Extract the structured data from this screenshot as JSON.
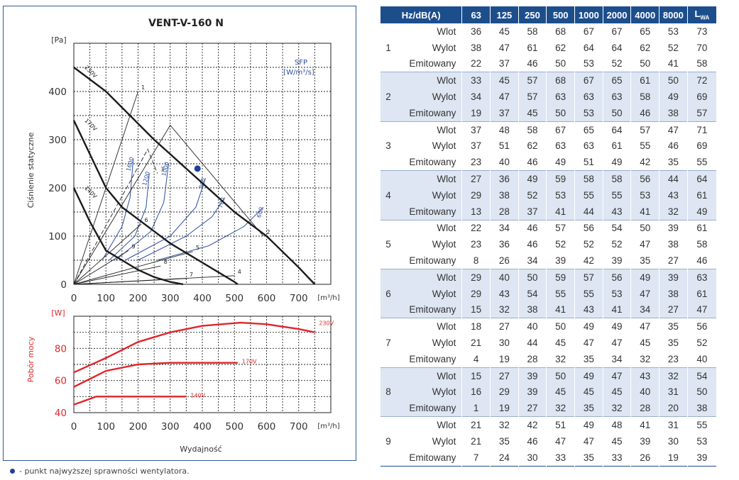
{
  "chart_data": [
    {
      "type": "line",
      "title": "VENT-V-160 N",
      "ylabel": "Ciśnienie statyczne",
      "yunit": "[Pa]",
      "xunit": "[m³/h]",
      "xlim": [
        0,
        800
      ],
      "ylim": [
        0,
        500
      ],
      "x_ticks": [
        0,
        100,
        200,
        300,
        400,
        500,
        600,
        700
      ],
      "y_ticks": [
        0,
        100,
        200,
        300,
        400
      ],
      "grid": true,
      "fan_curves": [
        {
          "name": "230V",
          "points": [
            [
              0,
              450
            ],
            [
              100,
              400
            ],
            [
              250,
              300
            ],
            [
              300,
              270
            ],
            [
              400,
              210
            ],
            [
              500,
              150
            ],
            [
              600,
              100
            ],
            [
              700,
              35
            ],
            [
              750,
              0
            ]
          ]
        },
        {
          "name": "170V",
          "points": [
            [
              0,
              340
            ],
            [
              50,
              270
            ],
            [
              100,
              200
            ],
            [
              150,
              160
            ],
            [
              200,
              135
            ],
            [
              250,
              110
            ],
            [
              300,
              85
            ],
            [
              400,
              45
            ],
            [
              500,
              5
            ],
            [
              510,
              0
            ]
          ]
        },
        {
          "name": "140V",
          "points": [
            [
              0,
              200
            ],
            [
              50,
              130
            ],
            [
              100,
              70
            ],
            [
              150,
              50
            ],
            [
              200,
              30
            ],
            [
              250,
              15
            ],
            [
              300,
              5
            ],
            [
              340,
              0
            ]
          ]
        }
      ],
      "system_curves": [
        {
          "label": "1",
          "points": [
            [
              0,
              0
            ],
            [
              200,
              400
            ]
          ]
        },
        {
          "label": "2",
          "points": [
            [
              0,
              0
            ],
            [
              300,
              330
            ],
            [
              590,
              100
            ]
          ]
        },
        {
          "label": "3",
          "points": [
            [
              0,
              0
            ],
            [
              230,
              280
            ],
            [
              260,
              230
            ]
          ]
        },
        {
          "label": "4",
          "points": [
            [
              0,
              0
            ],
            [
              500,
              18
            ]
          ]
        },
        {
          "label": "5",
          "points": [
            [
              0,
              0
            ],
            [
              370,
              68
            ]
          ]
        },
        {
          "label": "6",
          "points": [
            [
              0,
              0
            ],
            [
              210,
              125
            ]
          ]
        },
        {
          "label": "7",
          "points": [
            [
              0,
              0
            ],
            [
              350,
              12
            ]
          ]
        },
        {
          "label": "8",
          "points": [
            [
              0,
              0
            ],
            [
              270,
              38
            ]
          ]
        },
        {
          "label": "9",
          "points": [
            [
              0,
              0
            ],
            [
              170,
              70
            ]
          ]
        }
      ],
      "sfp_label": "SFP",
      "sfp_unit": "[W/m³/s]",
      "sfp_curves": [
        {
          "name": "1600",
          "points": [
            [
              90,
              52
            ],
            [
              150,
              120
            ],
            [
              175,
              180
            ],
            [
              185,
              260
            ]
          ]
        },
        {
          "name": "1200",
          "points": [
            [
              110,
              50
            ],
            [
              190,
              100
            ],
            [
              225,
              160
            ],
            [
              235,
              230
            ]
          ]
        },
        {
          "name": "1000",
          "points": [
            [
              130,
              50
            ],
            [
              240,
              110
            ],
            [
              280,
              170
            ],
            [
              295,
              250
            ]
          ]
        },
        {
          "name": "800",
          "points": [
            [
              160,
              50
            ],
            [
              300,
              100
            ],
            [
              380,
              160
            ],
            [
              410,
              220
            ]
          ]
        },
        {
          "name": "700",
          "points": [
            [
              200,
              50
            ],
            [
              350,
              100
            ],
            [
              430,
              140
            ],
            [
              470,
              180
            ]
          ]
        },
        {
          "name": "600",
          "points": [
            [
              260,
              50
            ],
            [
              420,
              80
            ],
            [
              530,
              120
            ],
            [
              590,
              160
            ]
          ]
        }
      ],
      "best_efficiency_point": {
        "x": 385,
        "y": 240
      },
      "point_labels": [
        "1",
        "2",
        "3",
        "4",
        "5",
        "6",
        "7",
        "8",
        "9"
      ]
    },
    {
      "type": "line",
      "ylabel": "Pobór mocy",
      "yunit": "[W]",
      "xlabel": "Wydajność",
      "xunit": "[m³/h]",
      "xlim": [
        0,
        800
      ],
      "ylim": [
        40,
        100
      ],
      "x_ticks": [
        0,
        100,
        200,
        300,
        400,
        500,
        600,
        700
      ],
      "y_ticks": [
        40,
        60,
        80
      ],
      "grid": true,
      "series": [
        {
          "name": "230V",
          "points": [
            [
              0,
              65
            ],
            [
              100,
              74
            ],
            [
              200,
              84
            ],
            [
              300,
              90
            ],
            [
              400,
              94
            ],
            [
              520,
              96
            ],
            [
              600,
              95
            ],
            [
              700,
              92
            ],
            [
              750,
              90
            ]
          ]
        },
        {
          "name": "170V",
          "points": [
            [
              0,
              56
            ],
            [
              100,
              66
            ],
            [
              200,
              70
            ],
            [
              300,
              71
            ],
            [
              400,
              71
            ],
            [
              500,
              71
            ],
            [
              510,
              71
            ]
          ]
        },
        {
          "name": "140V",
          "points": [
            [
              0,
              45
            ],
            [
              70,
              50
            ],
            [
              100,
              50
            ],
            [
              150,
              50
            ],
            [
              200,
              50
            ],
            [
              300,
              50
            ],
            [
              350,
              50
            ]
          ]
        }
      ]
    },
    {
      "type": "table",
      "headers": [
        "Hz/dB(A)",
        "63",
        "125",
        "250",
        "500",
        "1000",
        "2000",
        "4000",
        "8000",
        "L"
      ],
      "last_header_sub": "WA",
      "groups": [
        {
          "id": "1",
          "rows": [
            {
              "label": "Wlot",
              "values": [
                "36",
                "45",
                "58",
                "68",
                "67",
                "67",
                "65",
                "53",
                "73"
              ]
            },
            {
              "label": "Wylot",
              "values": [
                "38",
                "47",
                "61",
                "62",
                "64",
                "64",
                "62",
                "52",
                "70"
              ]
            },
            {
              "label": "Emitowany",
              "values": [
                "22",
                "37",
                "46",
                "50",
                "53",
                "52",
                "50",
                "41",
                "58"
              ]
            }
          ]
        },
        {
          "id": "2",
          "rows": [
            {
              "label": "Wlot",
              "values": [
                "33",
                "45",
                "57",
                "68",
                "67",
                "65",
                "61",
                "50",
                "72"
              ]
            },
            {
              "label": "Wylot",
              "values": [
                "34",
                "47",
                "57",
                "63",
                "63",
                "63",
                "58",
                "49",
                "69"
              ]
            },
            {
              "label": "Emitowany",
              "values": [
                "19",
                "37",
                "45",
                "50",
                "53",
                "50",
                "46",
                "38",
                "57"
              ]
            }
          ]
        },
        {
          "id": "3",
          "rows": [
            {
              "label": "Wlot",
              "values": [
                "37",
                "48",
                "58",
                "67",
                "65",
                "64",
                "57",
                "47",
                "71"
              ]
            },
            {
              "label": "Wylot",
              "values": [
                "37",
                "51",
                "62",
                "63",
                "63",
                "61",
                "55",
                "46",
                "69"
              ]
            },
            {
              "label": "Emitowany",
              "values": [
                "23",
                "40",
                "46",
                "49",
                "51",
                "49",
                "42",
                "35",
                "55"
              ]
            }
          ]
        },
        {
          "id": "4",
          "rows": [
            {
              "label": "Wlot",
              "values": [
                "27",
                "36",
                "49",
                "59",
                "58",
                "58",
                "56",
                "44",
                "64"
              ]
            },
            {
              "label": "Wylot",
              "values": [
                "29",
                "38",
                "52",
                "53",
                "55",
                "55",
                "53",
                "43",
                "61"
              ]
            },
            {
              "label": "Emitowany",
              "values": [
                "13",
                "28",
                "37",
                "41",
                "44",
                "43",
                "41",
                "32",
                "49"
              ]
            }
          ]
        },
        {
          "id": "5",
          "rows": [
            {
              "label": "Wlot",
              "values": [
                "22",
                "34",
                "46",
                "57",
                "56",
                "54",
                "50",
                "39",
                "61"
              ]
            },
            {
              "label": "Wylot",
              "values": [
                "23",
                "36",
                "46",
                "52",
                "52",
                "52",
                "47",
                "38",
                "58"
              ]
            },
            {
              "label": "Emitowany",
              "values": [
                "8",
                "26",
                "34",
                "39",
                "42",
                "39",
                "35",
                "27",
                "46"
              ]
            }
          ]
        },
        {
          "id": "6",
          "rows": [
            {
              "label": "Wlot",
              "values": [
                "29",
                "40",
                "50",
                "59",
                "57",
                "56",
                "49",
                "39",
                "63"
              ]
            },
            {
              "label": "Wylot",
              "values": [
                "29",
                "43",
                "54",
                "55",
                "55",
                "53",
                "47",
                "38",
                "61"
              ]
            },
            {
              "label": "Emitowany",
              "values": [
                "15",
                "32",
                "38",
                "41",
                "43",
                "41",
                "34",
                "27",
                "47"
              ]
            }
          ]
        },
        {
          "id": "7",
          "rows": [
            {
              "label": "Wlot",
              "values": [
                "18",
                "27",
                "40",
                "50",
                "49",
                "49",
                "47",
                "35",
                "56"
              ]
            },
            {
              "label": "Wylot",
              "values": [
                "21",
                "30",
                "44",
                "45",
                "47",
                "47",
                "45",
                "35",
                "52"
              ]
            },
            {
              "label": "Emitowany",
              "values": [
                "4",
                "19",
                "28",
                "32",
                "35",
                "34",
                "32",
                "23",
                "40"
              ]
            }
          ]
        },
        {
          "id": "8",
          "rows": [
            {
              "label": "Wlot",
              "values": [
                "15",
                "27",
                "39",
                "50",
                "49",
                "47",
                "43",
                "32",
                "54"
              ]
            },
            {
              "label": "Wylot",
              "values": [
                "16",
                "29",
                "39",
                "45",
                "45",
                "45",
                "40",
                "31",
                "50"
              ]
            },
            {
              "label": "Emitowany",
              "values": [
                "1",
                "19",
                "27",
                "32",
                "35",
                "32",
                "28",
                "20",
                "38"
              ]
            }
          ]
        },
        {
          "id": "9",
          "rows": [
            {
              "label": "Wlot",
              "values": [
                "21",
                "32",
                "42",
                "51",
                "49",
                "48",
                "41",
                "31",
                "55"
              ]
            },
            {
              "label": "Wylot",
              "values": [
                "21",
                "35",
                "46",
                "47",
                "47",
                "45",
                "39",
                "30",
                "53"
              ]
            },
            {
              "label": "Emitowany",
              "values": [
                "7",
                "24",
                "30",
                "33",
                "35",
                "33",
                "26",
                "19",
                "39"
              ]
            }
          ]
        }
      ]
    }
  ],
  "footnote": "- punkt najwyższej sprawności wentylatora.",
  "colors": {
    "frame": "#2f5b97",
    "fan_curve": "#1a1a1a",
    "sfp_curve": "#2c4f9e",
    "power_curve": "#e0262b",
    "point": "#1f3f9c",
    "header_bg": "#1d4e8c",
    "row_alt": "#dde6f2"
  }
}
